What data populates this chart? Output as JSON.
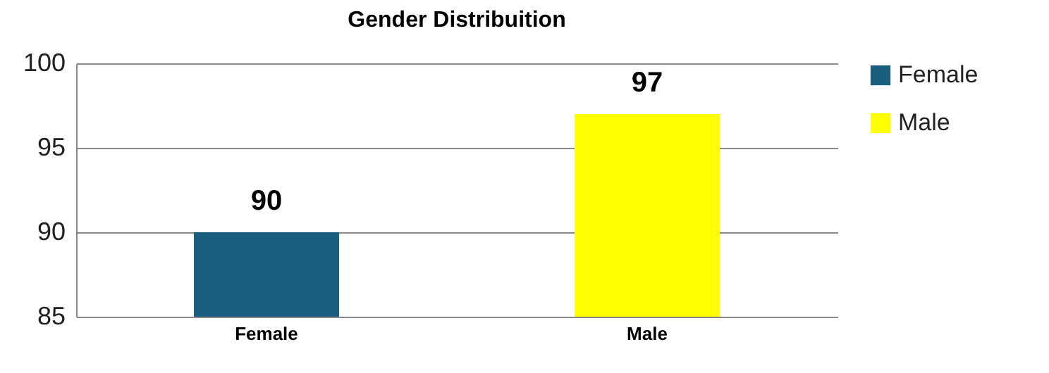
{
  "chart_data": {
    "type": "bar",
    "title": "Gender Distribuition",
    "categories": [
      "Female",
      "Male"
    ],
    "series": [
      {
        "name": "Female",
        "color": "#1a5f80",
        "values": [
          90,
          null
        ]
      },
      {
        "name": "Male",
        "color": "#ffff00",
        "values": [
          null,
          97
        ]
      }
    ],
    "ylim": [
      85,
      100
    ],
    "yticks": [
      85,
      90,
      95,
      100
    ],
    "grid": "y",
    "legend": "right",
    "data_labels": true
  }
}
